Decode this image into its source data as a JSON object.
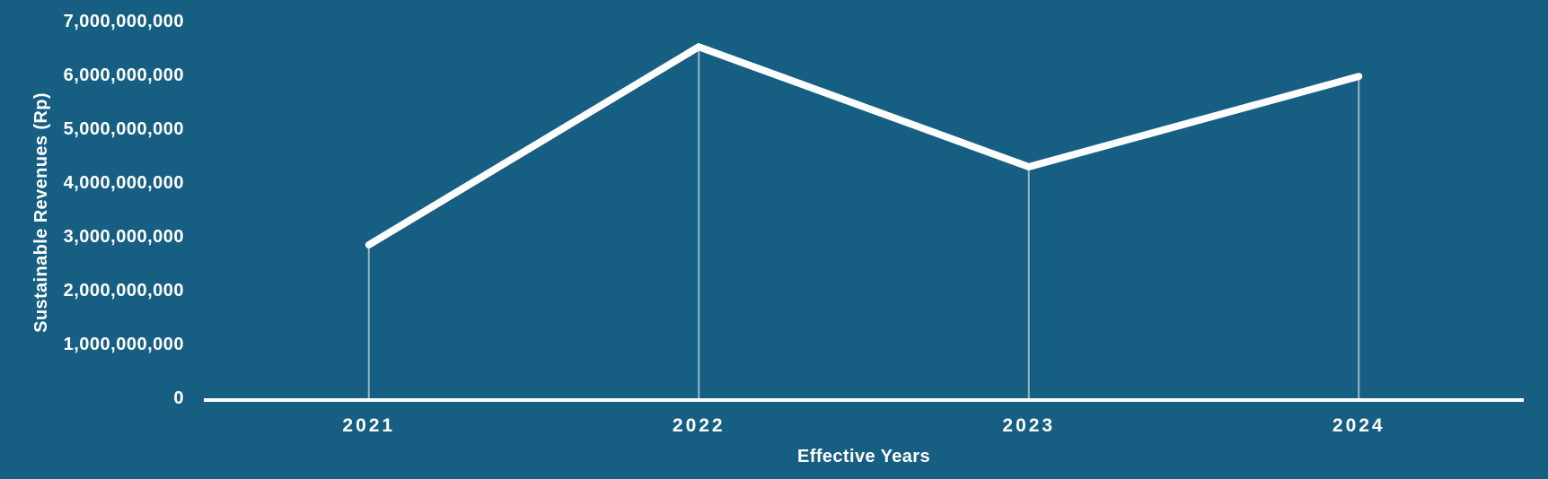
{
  "colors": {
    "background": "#175f82",
    "text": "#ffffff",
    "line": "#ffffff"
  },
  "chart_data": {
    "type": "line",
    "categories": [
      "2021",
      "2022",
      "2023",
      "2024"
    ],
    "values": [
      2850000000,
      6530000000,
      4300000000,
      5980000000
    ],
    "series": [
      {
        "name": "Sustainable Revenues",
        "values": [
          2850000000,
          6530000000,
          4300000000,
          5980000000
        ]
      }
    ],
    "title": "",
    "xlabel": "Effective Years",
    "ylabel": "Sustainable Revenues (Rp)",
    "ylim": [
      0,
      7000000000
    ],
    "yticks": [
      {
        "value": 0,
        "label": "0"
      },
      {
        "value": 1000000000,
        "label": "1,000,000,000"
      },
      {
        "value": 2000000000,
        "label": "2,000,000,000"
      },
      {
        "value": 3000000000,
        "label": "3,000,000,000"
      },
      {
        "value": 4000000000,
        "label": "4,000,000,000"
      },
      {
        "value": 5000000000,
        "label": "5,000,000,000"
      },
      {
        "value": 6000000000,
        "label": "6,000,000,000"
      },
      {
        "value": 7000000000,
        "label": "7,000,000,000"
      }
    ],
    "grid": false,
    "legend": false,
    "drop_lines": true,
    "line_color": "#ffffff",
    "background_color": "#175f82",
    "text_color": "#ffffff"
  }
}
